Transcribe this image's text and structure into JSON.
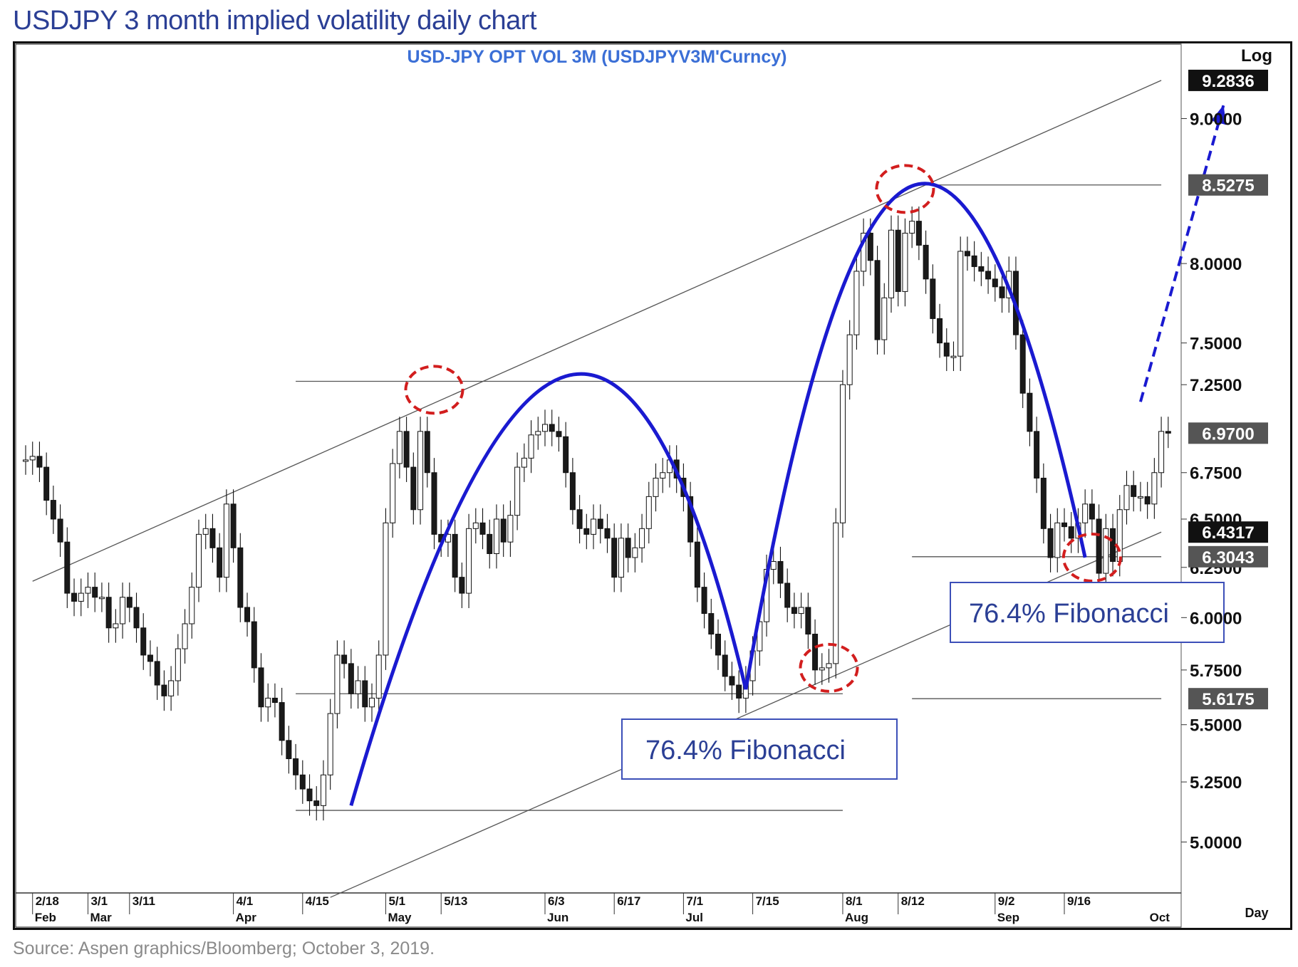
{
  "page": {
    "title": "USDJPY  3 month implied volatility daily chart",
    "source": "Source: Aspen graphics/Bloomberg; October 3, 2019."
  },
  "chart_data": {
    "type": "candlestick",
    "series_title": "USD-JPY  OPT  VOL  3M  (USDJPYV3M'Curncy)",
    "scale_label": "Log",
    "period_label": "Day",
    "y_scale": "log",
    "ylim": [
      4.8,
      9.55
    ],
    "y_ticks": [
      {
        "value": 9.0,
        "label": "9.0000"
      },
      {
        "value": 8.0,
        "label": "8.0000"
      },
      {
        "value": 7.5,
        "label": "7.5000"
      },
      {
        "value": 7.25,
        "label": "7.2500"
      },
      {
        "value": 6.75,
        "label": "6.7500"
      },
      {
        "value": 6.5,
        "label": "6.5000"
      },
      {
        "value": 6.25,
        "label": "6.2500"
      },
      {
        "value": 6.0,
        "label": "6.0000"
      },
      {
        "value": 5.75,
        "label": "5.7500"
      },
      {
        "value": 5.5,
        "label": "5.5000"
      },
      {
        "value": 5.25,
        "label": "5.2500"
      },
      {
        "value": 5.0,
        "label": "5.0000"
      }
    ],
    "price_labels": [
      {
        "value": 9.2836,
        "label": "9.2836",
        "style": "black"
      },
      {
        "value": 8.5275,
        "label": "8.5275",
        "style": "gray"
      },
      {
        "value": 6.97,
        "label": "6.9700",
        "style": "gray"
      },
      {
        "value": 6.4317,
        "label": "6.4317",
        "style": "black"
      },
      {
        "value": 6.3043,
        "label": "6.3043",
        "style": "gray"
      },
      {
        "value": 5.6175,
        "label": "5.6175",
        "style": "gray"
      }
    ],
    "x_date_ticks": [
      {
        "i": 1,
        "label": "2/18"
      },
      {
        "i": 9,
        "label": "3/1"
      },
      {
        "i": 15,
        "label": "3/11"
      },
      {
        "i": 30,
        "label": "4/1"
      },
      {
        "i": 40,
        "label": "4/15"
      },
      {
        "i": 52,
        "label": "5/1"
      },
      {
        "i": 60,
        "label": "5/13"
      },
      {
        "i": 75,
        "label": "6/3"
      },
      {
        "i": 85,
        "label": "6/17"
      },
      {
        "i": 95,
        "label": "7/1"
      },
      {
        "i": 105,
        "label": "7/15"
      },
      {
        "i": 118,
        "label": "8/1"
      },
      {
        "i": 126,
        "label": "8/12"
      },
      {
        "i": 140,
        "label": "9/2"
      },
      {
        "i": 150,
        "label": "9/16"
      }
    ],
    "x_month_ticks": [
      {
        "i": 1,
        "label": "Feb"
      },
      {
        "i": 9,
        "label": "Mar"
      },
      {
        "i": 30,
        "label": "Apr"
      },
      {
        "i": 52,
        "label": "May"
      },
      {
        "i": 75,
        "label": "Jun"
      },
      {
        "i": 95,
        "label": "Jul"
      },
      {
        "i": 118,
        "label": "Aug"
      },
      {
        "i": 140,
        "label": "Sep"
      },
      {
        "i": 162,
        "label": "Oct"
      }
    ],
    "closes": [
      6.82,
      6.84,
      6.78,
      6.6,
      6.5,
      6.38,
      6.12,
      6.08,
      6.12,
      6.15,
      6.1,
      6.1,
      5.95,
      5.97,
      6.1,
      6.05,
      5.95,
      5.82,
      5.79,
      5.68,
      5.63,
      5.7,
      5.85,
      5.97,
      6.15,
      6.42,
      6.45,
      6.35,
      6.2,
      6.58,
      6.35,
      6.05,
      5.98,
      5.76,
      5.58,
      5.62,
      5.6,
      5.43,
      5.35,
      5.28,
      5.22,
      5.17,
      5.15,
      5.28,
      5.55,
      5.82,
      5.78,
      5.64,
      5.7,
      5.58,
      5.62,
      5.82,
      6.48,
      6.8,
      6.98,
      6.78,
      6.55,
      6.98,
      6.75,
      6.42,
      6.38,
      6.42,
      6.2,
      6.12,
      6.45,
      6.48,
      6.42,
      6.32,
      6.5,
      6.38,
      6.52,
      6.78,
      6.83,
      6.96,
      6.98,
      7.02,
      6.98,
      6.95,
      6.75,
      6.55,
      6.45,
      6.42,
      6.5,
      6.45,
      6.4,
      6.2,
      6.4,
      6.3,
      6.35,
      6.45,
      6.62,
      6.72,
      6.75,
      6.82,
      6.72,
      6.62,
      6.38,
      6.15,
      6.02,
      5.92,
      5.82,
      5.72,
      5.68,
      5.62,
      5.7,
      5.84,
      5.98,
      6.24,
      6.28,
      6.17,
      6.05,
      6.02,
      6.05,
      5.92,
      5.75,
      5.76,
      5.78,
      6.48,
      7.25,
      7.55,
      7.95,
      8.2,
      8.02,
      7.52,
      7.78,
      8.22,
      7.82,
      8.2,
      8.28,
      8.12,
      7.9,
      7.65,
      7.5,
      7.42,
      7.42,
      8.08,
      8.05,
      7.98,
      7.95,
      7.9,
      7.85,
      7.78,
      7.95,
      7.55,
      7.2,
      6.98,
      6.72,
      6.45,
      6.3,
      6.48,
      6.46,
      6.4,
      6.48,
      6.58,
      6.5,
      6.22,
      6.45,
      6.28,
      6.55,
      6.68,
      6.62,
      6.62,
      6.58,
      6.75,
      6.98,
      6.97
    ],
    "hlines": [
      {
        "y": 7.27,
        "i0": 39,
        "i1": 118
      },
      {
        "y": 5.64,
        "i0": 39,
        "i1": 118
      },
      {
        "y": 5.13,
        "i0": 39,
        "i1": 118
      },
      {
        "y": 8.5275,
        "i0": 130,
        "i1": 164
      },
      {
        "y": 6.3043,
        "i0": 128,
        "i1": 164
      },
      {
        "y": 5.6175,
        "i0": 128,
        "i1": 164
      }
    ],
    "trendlines": [
      {
        "i0": 1,
        "y0": 6.18,
        "i1": 164,
        "y1": 9.2836
      },
      {
        "i0": 44,
        "y0": 4.78,
        "i1": 164,
        "y1": 6.4317
      }
    ],
    "arcs": [
      {
        "i0": 47,
        "y0": 5.15,
        "im": 78,
        "ym": 7.3,
        "i1": 104,
        "y1": 5.66
      },
      {
        "i0": 104,
        "y0": 5.66,
        "im": 128,
        "ym": 8.52,
        "i1": 153,
        "y1": 6.3
      }
    ],
    "projection": {
      "i0": 161,
      "y0": 7.15,
      "i1": 173,
      "y1": 9.1
    },
    "circles": [
      {
        "i": 59,
        "y": 7.22
      },
      {
        "i": 127,
        "y": 8.5
      },
      {
        "i": 116,
        "y": 5.76
      },
      {
        "i": 154,
        "y": 6.3
      }
    ],
    "annotations": [
      {
        "text": "76.4% Fibonacci"
      },
      {
        "text": "76.4% Fibonacci"
      }
    ]
  }
}
